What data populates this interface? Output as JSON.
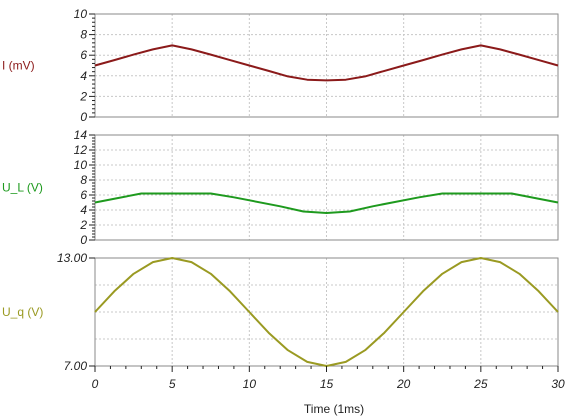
{
  "chart_data": [
    {
      "type": "line",
      "ylabel": "I (mV)",
      "ylim": [
        0,
        10
      ],
      "yticks": [
        "0",
        "2",
        "4",
        "6",
        "8",
        "10"
      ],
      "grid": true,
      "color": "#8b1a1a",
      "series": [
        {
          "x": [
            0,
            1.25,
            2.5,
            3.75,
            5,
            6.25,
            7.5,
            8.75,
            10,
            11.25,
            12.5,
            13.75,
            15,
            16.25,
            17.5,
            18.75,
            20,
            21.25,
            22.5,
            23.75,
            25,
            26.25,
            27.5,
            28.75,
            30
          ],
          "values": [
            5.0,
            5.52,
            6.06,
            6.56,
            6.95,
            6.56,
            6.06,
            5.52,
            5.0,
            4.48,
            3.94,
            3.62,
            3.55,
            3.62,
            3.94,
            4.48,
            5.0,
            5.52,
            6.06,
            6.56,
            6.95,
            6.56,
            6.06,
            5.52,
            5.0
          ]
        }
      ]
    },
    {
      "type": "line",
      "ylabel": "U_L (V)",
      "ylim": [
        0,
        14
      ],
      "yticks": [
        "0",
        "2",
        "4",
        "6",
        "8",
        "10",
        "12",
        "14"
      ],
      "grid": true,
      "color": "#1e9a1e",
      "series": [
        {
          "x": [
            0,
            1.5,
            3,
            7.5,
            9,
            12,
            13.5,
            15,
            16.5,
            18,
            21,
            22.5,
            27,
            28.5,
            30
          ],
          "values": [
            5.0,
            5.6,
            6.2,
            6.2,
            5.7,
            4.5,
            3.8,
            3.6,
            3.8,
            4.5,
            5.7,
            6.2,
            6.2,
            5.6,
            5.0
          ]
        }
      ]
    },
    {
      "type": "line",
      "ylabel": "U_q (V)",
      "ylim": [
        7.0,
        13.0
      ],
      "yticks": [
        "7.00",
        "13.00"
      ],
      "grid": true,
      "color": "#9a9a22",
      "series": [
        {
          "x": [
            0,
            1.25,
            2.5,
            3.75,
            5,
            6.25,
            7.5,
            8.75,
            10,
            11.25,
            12.5,
            13.75,
            15,
            16.25,
            17.5,
            18.75,
            20,
            21.25,
            22.5,
            23.75,
            25,
            26.25,
            27.5,
            28.75,
            30
          ],
          "values": [
            10.0,
            11.15,
            12.12,
            12.77,
            13.0,
            12.77,
            12.12,
            11.15,
            10.0,
            8.85,
            7.88,
            7.23,
            7.0,
            7.23,
            7.88,
            8.85,
            10.0,
            11.15,
            12.12,
            12.77,
            13.0,
            12.77,
            12.12,
            11.15,
            10.0
          ]
        }
      ]
    }
  ],
  "x_axis": {
    "label": "Time (1ms)",
    "xlim": [
      0,
      30
    ],
    "ticks": [
      "0",
      "5",
      "10",
      "15",
      "20",
      "25",
      "30"
    ]
  }
}
